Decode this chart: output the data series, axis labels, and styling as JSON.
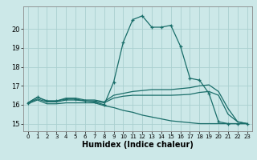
{
  "title": "",
  "xlabel": "Humidex (Indice chaleur)",
  "ylabel": "",
  "bg_color": "#cce8e8",
  "grid_color": "#aacfcf",
  "line_color": "#1a6e6a",
  "xlim": [
    -0.5,
    23.5
  ],
  "ylim": [
    14.6,
    21.2
  ],
  "xticks": [
    0,
    1,
    2,
    3,
    4,
    5,
    6,
    7,
    8,
    9,
    10,
    11,
    12,
    13,
    14,
    15,
    16,
    17,
    18,
    19,
    20,
    21,
    22,
    23
  ],
  "yticks": [
    15,
    16,
    17,
    18,
    19,
    20
  ],
  "lines": [
    {
      "x": [
        0,
        1,
        2,
        3,
        4,
        5,
        6,
        7,
        8,
        9,
        10,
        11,
        12,
        13,
        14,
        15,
        16,
        17,
        18,
        19,
        20,
        21,
        22,
        23
      ],
      "y": [
        16.1,
        16.4,
        16.2,
        16.2,
        16.3,
        16.3,
        16.2,
        16.15,
        16.0,
        17.2,
        19.3,
        20.5,
        20.7,
        20.1,
        20.1,
        20.2,
        19.1,
        17.4,
        17.3,
        16.6,
        15.1,
        15.0,
        15.0,
        15.0
      ],
      "marker": "+"
    },
    {
      "x": [
        0,
        1,
        2,
        3,
        4,
        5,
        6,
        7,
        8,
        9,
        10,
        11,
        12,
        13,
        14,
        15,
        16,
        17,
        18,
        19,
        20,
        21,
        22,
        23
      ],
      "y": [
        16.1,
        16.4,
        16.2,
        16.2,
        16.35,
        16.35,
        16.25,
        16.25,
        16.15,
        16.5,
        16.6,
        16.7,
        16.75,
        16.8,
        16.8,
        16.8,
        16.85,
        16.9,
        17.0,
        17.05,
        16.7,
        15.8,
        15.1,
        15.0
      ],
      "marker": null
    },
    {
      "x": [
        0,
        1,
        2,
        3,
        4,
        5,
        6,
        7,
        8,
        9,
        10,
        11,
        12,
        13,
        14,
        15,
        16,
        17,
        18,
        19,
        20,
        21,
        22,
        23
      ],
      "y": [
        16.1,
        16.3,
        16.15,
        16.15,
        16.25,
        16.25,
        16.2,
        16.2,
        16.1,
        16.35,
        16.45,
        16.5,
        16.5,
        16.5,
        16.5,
        16.5,
        16.52,
        16.55,
        16.65,
        16.7,
        16.5,
        15.5,
        15.1,
        15.0
      ],
      "marker": null
    },
    {
      "x": [
        0,
        1,
        2,
        3,
        4,
        5,
        6,
        7,
        8,
        9,
        10,
        11,
        12,
        13,
        14,
        15,
        16,
        17,
        18,
        19,
        20,
        21,
        22,
        23
      ],
      "y": [
        16.05,
        16.25,
        16.05,
        16.05,
        16.1,
        16.1,
        16.1,
        16.1,
        15.95,
        15.85,
        15.7,
        15.6,
        15.45,
        15.35,
        15.25,
        15.15,
        15.1,
        15.05,
        15.0,
        15.0,
        15.0,
        15.0,
        15.0,
        15.0
      ],
      "marker": null
    }
  ],
  "xlabel_fontsize": 7,
  "xtick_fontsize": 5,
  "ytick_fontsize": 6
}
